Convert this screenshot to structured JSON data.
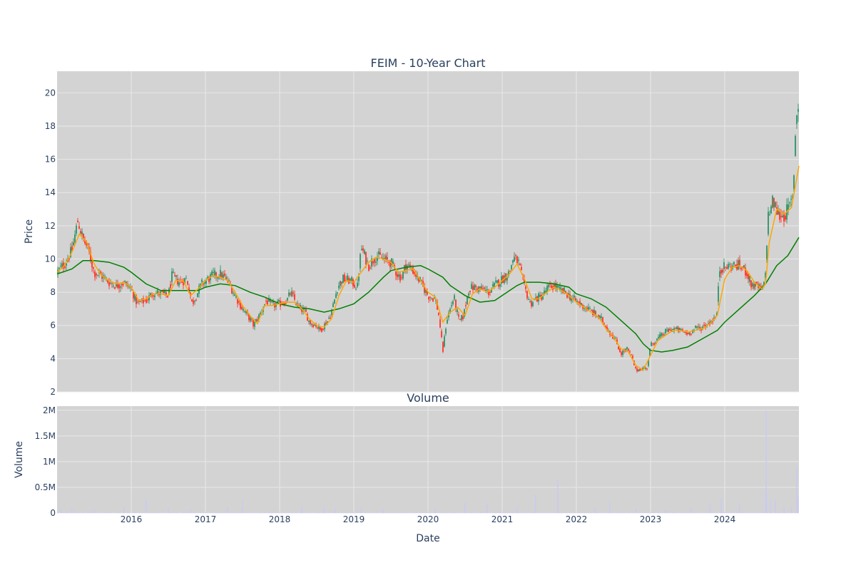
{
  "chart_data": {
    "type": "candlestick",
    "title": "FEIM - 10-Year Chart",
    "subplot_title": "Volume",
    "xlabel": "Date",
    "price_ylabel": "Price",
    "volume_ylabel": "Volume",
    "x_ticks": [
      "2016",
      "2017",
      "2018",
      "2019",
      "2020",
      "2021",
      "2022",
      "2023",
      "2024"
    ],
    "price_ticks": [
      2,
      4,
      6,
      8,
      10,
      12,
      14,
      16,
      18,
      20
    ],
    "price_ylim": [
      2,
      21.3
    ],
    "volume_ticks": [
      "0",
      "0.5M",
      "1M",
      "1.5M",
      "2M"
    ],
    "volume_tick_values": [
      0,
      500000,
      1000000,
      1500000,
      2000000
    ],
    "volume_ylim": [
      0,
      2080000
    ],
    "xlim": [
      2015.0,
      2025.0
    ],
    "grid": true,
    "colors": {
      "increasing": "#3d9970",
      "decreasing": "#ff4136",
      "ma_short": "#ffa500",
      "ma_long": "#008000",
      "volume": "#c9c9f5",
      "plot_bg": "#d3d3d3",
      "grid": "#e8e8e8"
    },
    "price_path": [
      [
        2015.0,
        9.2
      ],
      [
        2015.1,
        9.7
      ],
      [
        2015.2,
        10.5
      ],
      [
        2015.28,
        12.3
      ],
      [
        2015.35,
        11.2
      ],
      [
        2015.42,
        10.6
      ],
      [
        2015.5,
        9.2
      ],
      [
        2015.6,
        9.0
      ],
      [
        2015.7,
        8.6
      ],
      [
        2015.8,
        8.4
      ],
      [
        2015.9,
        8.6
      ],
      [
        2016.0,
        8.2
      ],
      [
        2016.08,
        7.3
      ],
      [
        2016.2,
        7.5
      ],
      [
        2016.3,
        8.0
      ],
      [
        2016.4,
        7.9
      ],
      [
        2016.5,
        7.8
      ],
      [
        2016.55,
        9.0
      ],
      [
        2016.65,
        8.6
      ],
      [
        2016.75,
        8.8
      ],
      [
        2016.82,
        7.3
      ],
      [
        2016.95,
        8.5
      ],
      [
        2017.1,
        9.0
      ],
      [
        2017.2,
        9.1
      ],
      [
        2017.3,
        8.7
      ],
      [
        2017.4,
        7.8
      ],
      [
        2017.5,
        7.0
      ],
      [
        2017.6,
        6.4
      ],
      [
        2017.65,
        6.0
      ],
      [
        2017.75,
        6.8
      ],
      [
        2017.82,
        7.5
      ],
      [
        2017.9,
        7.2
      ],
      [
        2018.0,
        7.3
      ],
      [
        2018.1,
        7.5
      ],
      [
        2018.15,
        8.0
      ],
      [
        2018.25,
        7.1
      ],
      [
        2018.35,
        6.8
      ],
      [
        2018.4,
        6.2
      ],
      [
        2018.5,
        6.0
      ],
      [
        2018.55,
        5.7
      ],
      [
        2018.65,
        6.3
      ],
      [
        2018.7,
        6.8
      ],
      [
        2018.78,
        8.3
      ],
      [
        2018.85,
        8.8
      ],
      [
        2018.95,
        8.7
      ],
      [
        2019.05,
        8.3
      ],
      [
        2019.1,
        10.7
      ],
      [
        2019.2,
        9.6
      ],
      [
        2019.3,
        10.2
      ],
      [
        2019.4,
        10.0
      ],
      [
        2019.5,
        9.8
      ],
      [
        2019.6,
        9.0
      ],
      [
        2019.65,
        8.9
      ],
      [
        2019.7,
        9.7
      ],
      [
        2019.8,
        9.3
      ],
      [
        2019.9,
        8.6
      ],
      [
        2020.0,
        7.8
      ],
      [
        2020.1,
        7.6
      ],
      [
        2020.15,
        6.5
      ],
      [
        2020.2,
        4.4
      ],
      [
        2020.25,
        6.3
      ],
      [
        2020.35,
        7.7
      ],
      [
        2020.42,
        6.2
      ],
      [
        2020.48,
        6.6
      ],
      [
        2020.55,
        8.2
      ],
      [
        2020.62,
        8.3
      ],
      [
        2020.72,
        8.2
      ],
      [
        2020.82,
        8.0
      ],
      [
        2020.92,
        8.5
      ],
      [
        2021.0,
        8.8
      ],
      [
        2021.1,
        9.2
      ],
      [
        2021.15,
        10.1
      ],
      [
        2021.22,
        9.8
      ],
      [
        2021.3,
        8.3
      ],
      [
        2021.38,
        7.3
      ],
      [
        2021.45,
        7.6
      ],
      [
        2021.55,
        7.8
      ],
      [
        2021.6,
        8.2
      ],
      [
        2021.7,
        8.4
      ],
      [
        2021.78,
        8.1
      ],
      [
        2021.85,
        8.0
      ],
      [
        2021.95,
        7.6
      ],
      [
        2022.05,
        7.3
      ],
      [
        2022.15,
        7.0
      ],
      [
        2022.25,
        6.7
      ],
      [
        2022.35,
        6.3
      ],
      [
        2022.45,
        5.6
      ],
      [
        2022.52,
        5.2
      ],
      [
        2022.6,
        4.3
      ],
      [
        2022.68,
        4.6
      ],
      [
        2022.75,
        4.1
      ],
      [
        2022.8,
        3.3
      ],
      [
        2022.88,
        3.4
      ],
      [
        2022.95,
        3.4
      ],
      [
        2023.0,
        4.8
      ],
      [
        2023.1,
        5.2
      ],
      [
        2023.2,
        5.6
      ],
      [
        2023.3,
        5.8
      ],
      [
        2023.4,
        5.7
      ],
      [
        2023.5,
        5.5
      ],
      [
        2023.6,
        5.8
      ],
      [
        2023.7,
        5.9
      ],
      [
        2023.8,
        6.2
      ],
      [
        2023.9,
        6.6
      ],
      [
        2023.92,
        9.4
      ],
      [
        2024.0,
        9.5
      ],
      [
        2024.1,
        9.6
      ],
      [
        2024.2,
        9.6
      ],
      [
        2024.3,
        9.2
      ],
      [
        2024.35,
        8.5
      ],
      [
        2024.45,
        8.3
      ],
      [
        2024.52,
        8.1
      ],
      [
        2024.55,
        9.2
      ],
      [
        2024.58,
        12.5
      ],
      [
        2024.65,
        13.5
      ],
      [
        2024.72,
        12.7
      ],
      [
        2024.8,
        12.6
      ],
      [
        2024.88,
        13.2
      ],
      [
        2024.92,
        13.7
      ],
      [
        2024.95,
        17.4
      ],
      [
        2024.98,
        19.4
      ],
      [
        2025.0,
        19.3
      ]
    ],
    "ma_short_path": [
      [
        2015.0,
        9.2
      ],
      [
        2015.1,
        9.6
      ],
      [
        2015.2,
        10.4
      ],
      [
        2015.3,
        11.5
      ],
      [
        2015.4,
        11.0
      ],
      [
        2015.5,
        9.7
      ],
      [
        2015.6,
        9.0
      ],
      [
        2015.7,
        8.7
      ],
      [
        2015.8,
        8.5
      ],
      [
        2015.9,
        8.6
      ],
      [
        2016.0,
        8.3
      ],
      [
        2016.1,
        7.5
      ],
      [
        2016.2,
        7.6
      ],
      [
        2016.3,
        7.9
      ],
      [
        2016.4,
        7.9
      ],
      [
        2016.5,
        7.8
      ],
      [
        2016.6,
        8.7
      ],
      [
        2016.7,
        8.7
      ],
      [
        2016.8,
        7.8
      ],
      [
        2016.9,
        8.2
      ],
      [
        2017.0,
        8.7
      ],
      [
        2017.1,
        9.0
      ],
      [
        2017.2,
        8.9
      ],
      [
        2017.3,
        8.7
      ],
      [
        2017.4,
        8.0
      ],
      [
        2017.5,
        7.2
      ],
      [
        2017.6,
        6.6
      ],
      [
        2017.7,
        6.1
      ],
      [
        2017.8,
        7.2
      ],
      [
        2017.9,
        7.2
      ],
      [
        2018.0,
        7.3
      ],
      [
        2018.1,
        7.4
      ],
      [
        2018.2,
        7.4
      ],
      [
        2018.3,
        7.0
      ],
      [
        2018.4,
        6.4
      ],
      [
        2018.5,
        6.0
      ],
      [
        2018.6,
        5.9
      ],
      [
        2018.7,
        6.4
      ],
      [
        2018.8,
        7.8
      ],
      [
        2018.9,
        8.7
      ],
      [
        2019.0,
        8.6
      ],
      [
        2019.1,
        9.2
      ],
      [
        2019.2,
        9.8
      ],
      [
        2019.3,
        10.1
      ],
      [
        2019.4,
        10.0
      ],
      [
        2019.5,
        9.8
      ],
      [
        2019.6,
        9.2
      ],
      [
        2019.7,
        9.3
      ],
      [
        2019.8,
        9.4
      ],
      [
        2019.9,
        8.7
      ],
      [
        2020.0,
        8.0
      ],
      [
        2020.1,
        7.7
      ],
      [
        2020.2,
        6.2
      ],
      [
        2020.3,
        6.8
      ],
      [
        2020.4,
        7.1
      ],
      [
        2020.5,
        6.6
      ],
      [
        2020.6,
        7.9
      ],
      [
        2020.7,
        8.2
      ],
      [
        2020.8,
        8.0
      ],
      [
        2020.9,
        8.3
      ],
      [
        2021.0,
        8.7
      ],
      [
        2021.1,
        9.1
      ],
      [
        2021.2,
        9.7
      ],
      [
        2021.3,
        8.8
      ],
      [
        2021.4,
        7.6
      ],
      [
        2021.5,
        7.6
      ],
      [
        2021.6,
        8.0
      ],
      [
        2021.7,
        8.3
      ],
      [
        2021.8,
        8.1
      ],
      [
        2021.9,
        7.8
      ],
      [
        2022.0,
        7.4
      ],
      [
        2022.1,
        7.1
      ],
      [
        2022.2,
        6.8
      ],
      [
        2022.3,
        6.5
      ],
      [
        2022.4,
        5.8
      ],
      [
        2022.5,
        5.3
      ],
      [
        2022.6,
        4.6
      ],
      [
        2022.7,
        4.4
      ],
      [
        2022.8,
        3.6
      ],
      [
        2022.9,
        3.3
      ],
      [
        2023.0,
        4.2
      ],
      [
        2023.1,
        5.1
      ],
      [
        2023.2,
        5.4
      ],
      [
        2023.3,
        5.7
      ],
      [
        2023.4,
        5.7
      ],
      [
        2023.5,
        5.6
      ],
      [
        2023.6,
        5.7
      ],
      [
        2023.7,
        5.8
      ],
      [
        2023.8,
        6.1
      ],
      [
        2023.9,
        6.6
      ],
      [
        2024.0,
        8.8
      ],
      [
        2024.1,
        9.5
      ],
      [
        2024.2,
        9.6
      ],
      [
        2024.3,
        9.3
      ],
      [
        2024.4,
        8.6
      ],
      [
        2024.5,
        8.2
      ],
      [
        2024.55,
        8.5
      ],
      [
        2024.6,
        11.0
      ],
      [
        2024.7,
        13.0
      ],
      [
        2024.8,
        12.7
      ],
      [
        2024.9,
        13.1
      ],
      [
        2025.0,
        15.6
      ]
    ],
    "ma_long_path": [
      [
        2015.0,
        9.1
      ],
      [
        2015.2,
        9.4
      ],
      [
        2015.35,
        9.9
      ],
      [
        2015.5,
        9.9
      ],
      [
        2015.7,
        9.8
      ],
      [
        2015.9,
        9.5
      ],
      [
        2016.0,
        9.2
      ],
      [
        2016.2,
        8.5
      ],
      [
        2016.4,
        8.1
      ],
      [
        2016.5,
        8.1
      ],
      [
        2016.7,
        8.1
      ],
      [
        2016.9,
        8.1
      ],
      [
        2017.0,
        8.3
      ],
      [
        2017.2,
        8.5
      ],
      [
        2017.4,
        8.4
      ],
      [
        2017.6,
        8.0
      ],
      [
        2017.8,
        7.7
      ],
      [
        2018.0,
        7.3
      ],
      [
        2018.2,
        7.1
      ],
      [
        2018.4,
        7.0
      ],
      [
        2018.6,
        6.8
      ],
      [
        2018.8,
        7.0
      ],
      [
        2019.0,
        7.3
      ],
      [
        2019.2,
        8.0
      ],
      [
        2019.4,
        8.9
      ],
      [
        2019.5,
        9.3
      ],
      [
        2019.7,
        9.5
      ],
      [
        2019.9,
        9.6
      ],
      [
        2020.0,
        9.4
      ],
      [
        2020.2,
        8.9
      ],
      [
        2020.3,
        8.4
      ],
      [
        2020.5,
        7.8
      ],
      [
        2020.7,
        7.4
      ],
      [
        2020.9,
        7.5
      ],
      [
        2021.0,
        7.8
      ],
      [
        2021.2,
        8.4
      ],
      [
        2021.3,
        8.6
      ],
      [
        2021.5,
        8.6
      ],
      [
        2021.7,
        8.5
      ],
      [
        2021.9,
        8.3
      ],
      [
        2022.0,
        7.9
      ],
      [
        2022.2,
        7.6
      ],
      [
        2022.4,
        7.1
      ],
      [
        2022.6,
        6.3
      ],
      [
        2022.8,
        5.5
      ],
      [
        2022.9,
        4.9
      ],
      [
        2023.0,
        4.5
      ],
      [
        2023.15,
        4.4
      ],
      [
        2023.3,
        4.5
      ],
      [
        2023.5,
        4.7
      ],
      [
        2023.7,
        5.2
      ],
      [
        2023.9,
        5.7
      ],
      [
        2024.0,
        6.2
      ],
      [
        2024.2,
        7.0
      ],
      [
        2024.4,
        7.8
      ],
      [
        2024.55,
        8.5
      ],
      [
        2024.7,
        9.6
      ],
      [
        2024.85,
        10.2
      ],
      [
        2025.0,
        11.3
      ]
    ],
    "volume_spikes": [
      [
        2015.05,
        90000
      ],
      [
        2015.2,
        80000
      ],
      [
        2015.5,
        60000
      ],
      [
        2015.9,
        120000
      ],
      [
        2016.2,
        260000
      ],
      [
        2016.5,
        90000
      ],
      [
        2016.8,
        60000
      ],
      [
        2017.3,
        110000
      ],
      [
        2017.5,
        240000
      ],
      [
        2018.3,
        130000
      ],
      [
        2018.6,
        120000
      ],
      [
        2018.75,
        90000
      ],
      [
        2019.1,
        130000
      ],
      [
        2019.4,
        80000
      ],
      [
        2020.1,
        70000
      ],
      [
        2020.5,
        200000
      ],
      [
        2020.8,
        170000
      ],
      [
        2021.2,
        120000
      ],
      [
        2021.45,
        350000
      ],
      [
        2021.75,
        650000
      ],
      [
        2022.25,
        90000
      ],
      [
        2022.45,
        220000
      ],
      [
        2022.8,
        70000
      ],
      [
        2023.2,
        60000
      ],
      [
        2023.55,
        90000
      ],
      [
        2023.8,
        170000
      ],
      [
        2023.95,
        270000
      ],
      [
        2024.2,
        180000
      ],
      [
        2024.55,
        400000
      ],
      [
        2024.56,
        1990000
      ],
      [
        2024.62,
        240000
      ],
      [
        2024.68,
        260000
      ],
      [
        2024.8,
        120000
      ],
      [
        2024.9,
        110000
      ],
      [
        2024.97,
        910000
      ],
      [
        2024.99,
        300000
      ]
    ]
  }
}
